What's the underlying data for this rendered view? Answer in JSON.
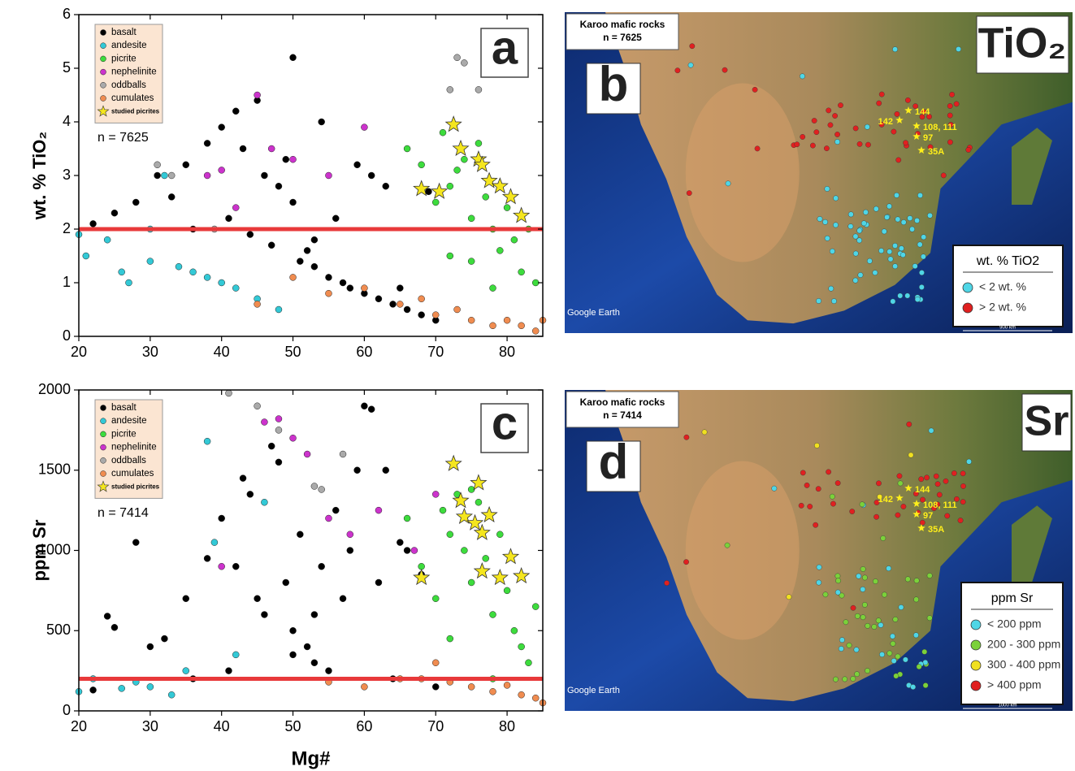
{
  "chart_data": [
    {
      "type": "scatter",
      "panel_label": "a",
      "ylabel": "wt. % TiO₂",
      "annotation": "n = 7625",
      "xlim": [
        20,
        85
      ],
      "xticks": [
        20,
        30,
        40,
        50,
        60,
        70,
        80
      ],
      "ylim": [
        0,
        6
      ],
      "yticks": [
        0,
        1,
        2,
        3,
        4,
        5,
        6
      ],
      "reference_line": 2,
      "reference_color": "#e8393a",
      "legend": "upper left",
      "series": [
        {
          "name": "basalt",
          "color": "#000000",
          "marker": "circle",
          "x": [
            22,
            25,
            28,
            31,
            33,
            35,
            38,
            40,
            42,
            43,
            45,
            46,
            48,
            50,
            52,
            53,
            55,
            57,
            58,
            60,
            62,
            64,
            66,
            68,
            70,
            44,
            47,
            51,
            56,
            61,
            50,
            54,
            59,
            63,
            41,
            36,
            49,
            53,
            65,
            69
          ],
          "y": [
            2.1,
            2.3,
            2.5,
            3.0,
            2.6,
            3.2,
            3.6,
            3.9,
            4.2,
            3.5,
            4.4,
            3.0,
            2.8,
            2.5,
            1.6,
            1.3,
            1.1,
            1.0,
            0.9,
            0.8,
            0.7,
            0.6,
            0.5,
            0.4,
            0.3,
            1.9,
            1.7,
            1.4,
            2.2,
            3.0,
            5.2,
            4.0,
            3.2,
            2.8,
            2.2,
            2.0,
            3.3,
            1.8,
            0.9,
            2.7
          ]
        },
        {
          "name": "andesite",
          "color": "#33c9d6",
          "marker": "circle",
          "x": [
            20,
            21,
            24,
            27,
            30,
            32,
            34,
            36,
            38,
            40,
            42,
            45,
            48,
            30,
            26
          ],
          "y": [
            1.9,
            1.5,
            1.8,
            1.0,
            1.4,
            3.0,
            1.3,
            1.2,
            1.1,
            1.0,
            0.9,
            0.7,
            0.5,
            2.0,
            1.2
          ]
        },
        {
          "name": "picrite",
          "color": "#3ddc3d",
          "marker": "circle",
          "x": [
            66,
            68,
            70,
            71,
            72,
            73,
            74,
            75,
            76,
            77,
            78,
            79,
            80,
            81,
            82,
            83,
            84,
            72,
            75,
            78
          ],
          "y": [
            3.5,
            3.2,
            2.5,
            3.8,
            2.8,
            3.1,
            3.3,
            2.2,
            3.6,
            2.6,
            2.0,
            1.6,
            2.4,
            1.8,
            1.2,
            2.0,
            1.0,
            1.5,
            1.4,
            0.9
          ]
        },
        {
          "name": "nephelinite",
          "color": "#cc33cc",
          "marker": "circle",
          "x": [
            40,
            45,
            47,
            50,
            55,
            60,
            38,
            42
          ],
          "y": [
            3.1,
            4.5,
            3.5,
            3.3,
            3.0,
            3.9,
            3.0,
            2.4
          ]
        },
        {
          "name": "oddballs",
          "color": "#aaaaaa",
          "marker": "circle",
          "x": [
            31,
            33,
            39,
            72,
            73,
            74,
            76
          ],
          "y": [
            3.2,
            3.0,
            2.0,
            4.6,
            5.2,
            5.1,
            4.6
          ]
        },
        {
          "name": "cumulates",
          "color": "#f08c50",
          "marker": "circle",
          "x": [
            45,
            50,
            55,
            60,
            65,
            70,
            75,
            78,
            80,
            82,
            84,
            85,
            68,
            73
          ],
          "y": [
            0.6,
            1.1,
            0.8,
            0.9,
            0.6,
            0.4,
            0.3,
            0.2,
            0.3,
            0.2,
            0.1,
            0.3,
            0.7,
            0.5
          ]
        },
        {
          "name": "studied picrites",
          "color": "#f5e61e",
          "marker": "star",
          "x": [
            72.5,
            73.5,
            76,
            76.5,
            77.5,
            79,
            80.5,
            82,
            68,
            70.5
          ],
          "y": [
            3.95,
            3.5,
            3.3,
            3.2,
            2.9,
            2.8,
            2.6,
            2.25,
            2.75,
            2.7
          ]
        }
      ]
    },
    {
      "type": "scatter",
      "panel_label": "c",
      "ylabel": "ppm Sr",
      "xlabel": "Mg#",
      "annotation": "n = 7414",
      "xlim": [
        20,
        85
      ],
      "xticks": [
        20,
        30,
        40,
        50,
        60,
        70,
        80
      ],
      "ylim": [
        0,
        2000
      ],
      "yticks": [
        0,
        500,
        1000,
        1500,
        2000
      ],
      "reference_line": 200,
      "reference_color": "#e8393a",
      "legend": "upper left",
      "series": [
        {
          "name": "basalt",
          "color": "#000000",
          "marker": "circle",
          "x": [
            22,
            24,
            25,
            28,
            30,
            32,
            35,
            38,
            40,
            42,
            43,
            45,
            46,
            48,
            50,
            52,
            53,
            55,
            57,
            58,
            60,
            62,
            64,
            66,
            68,
            70,
            44,
            47,
            51,
            56,
            61,
            50,
            54,
            59,
            63,
            41,
            36,
            49,
            53,
            65
          ],
          "y": [
            130,
            590,
            520,
            1050,
            400,
            450,
            700,
            950,
            1200,
            900,
            1450,
            700,
            600,
            1550,
            500,
            400,
            300,
            250,
            700,
            1000,
            1900,
            800,
            200,
            1000,
            850,
            150,
            1350,
            1650,
            1100,
            1250,
            1880,
            350,
            900,
            1500,
            1500,
            250,
            200,
            800,
            600,
            1050
          ]
        },
        {
          "name": "andesite",
          "color": "#33c9d6",
          "marker": "circle",
          "x": [
            20,
            22,
            26,
            30,
            33,
            38,
            39,
            42,
            46,
            28,
            35
          ],
          "y": [
            120,
            200,
            140,
            150,
            100,
            1680,
            1050,
            350,
            1300,
            180,
            250
          ]
        },
        {
          "name": "picrite",
          "color": "#3ddc3d",
          "marker": "circle",
          "x": [
            66,
            68,
            70,
            71,
            72,
            73,
            74,
            75,
            76,
            77,
            78,
            79,
            80,
            81,
            82,
            83,
            84,
            72,
            75,
            78
          ],
          "y": [
            1200,
            900,
            700,
            1250,
            1100,
            1350,
            1000,
            800,
            1300,
            950,
            600,
            1100,
            750,
            500,
            400,
            300,
            650,
            450,
            1380,
            200
          ]
        },
        {
          "name": "nephelinite",
          "color": "#cc33cc",
          "marker": "circle",
          "x": [
            46,
            48,
            50,
            52,
            55,
            58,
            62,
            67,
            40,
            70
          ],
          "y": [
            1800,
            1820,
            1700,
            1600,
            1200,
            1100,
            1250,
            1000,
            900,
            1350
          ]
        },
        {
          "name": "oddballs",
          "color": "#aaaaaa",
          "marker": "circle",
          "x": [
            41,
            45,
            48,
            53,
            54,
            57
          ],
          "y": [
            1980,
            1900,
            1750,
            1400,
            1380,
            1600
          ]
        },
        {
          "name": "cumulates",
          "color": "#f08c50",
          "marker": "circle",
          "x": [
            55,
            60,
            65,
            70,
            72,
            75,
            78,
            80,
            82,
            84,
            85,
            68
          ],
          "y": [
            180,
            150,
            200,
            300,
            180,
            150,
            120,
            160,
            100,
            80,
            50,
            200
          ]
        },
        {
          "name": "studied picrites",
          "color": "#f5e61e",
          "marker": "star",
          "x": [
            72.5,
            73.5,
            74,
            75.5,
            76,
            76.5,
            77.5,
            80.5,
            82,
            68,
            76.5,
            79
          ],
          "y": [
            1540,
            1310,
            1210,
            1170,
            1420,
            1110,
            1220,
            960,
            840,
            830,
            870,
            830
          ]
        }
      ]
    }
  ],
  "maps": [
    {
      "panel": "b",
      "title": "Karoo mafic rocks",
      "n": "n = 7625",
      "element": "TiO₂",
      "legend_title": "wt. % TiO2",
      "legend": [
        {
          "label": "< 2 wt. %",
          "color": "#4fd6e6"
        },
        {
          "label": "> 2 wt. %",
          "color": "#e02020"
        }
      ],
      "sites": [
        "142",
        "144",
        "108, 111",
        "97",
        "35A"
      ],
      "credit": "Google Earth",
      "scale": "900 km"
    },
    {
      "panel": "d",
      "title": "Karoo mafic rocks",
      "n": "n = 7414",
      "element": "Sr",
      "legend_title": "ppm Sr",
      "legend": [
        {
          "label": "< 200 ppm",
          "color": "#4fd6e6"
        },
        {
          "label": "200 - 300 ppm",
          "color": "#7bd13a"
        },
        {
          "label": "300 - 400 ppm",
          "color": "#f0e020"
        },
        {
          "label": "> 400 ppm",
          "color": "#e02020"
        }
      ],
      "sites": [
        "142",
        "144",
        "108, 111",
        "97",
        "35A"
      ],
      "credit": "Google Earth",
      "scale": "1000 km"
    }
  ]
}
